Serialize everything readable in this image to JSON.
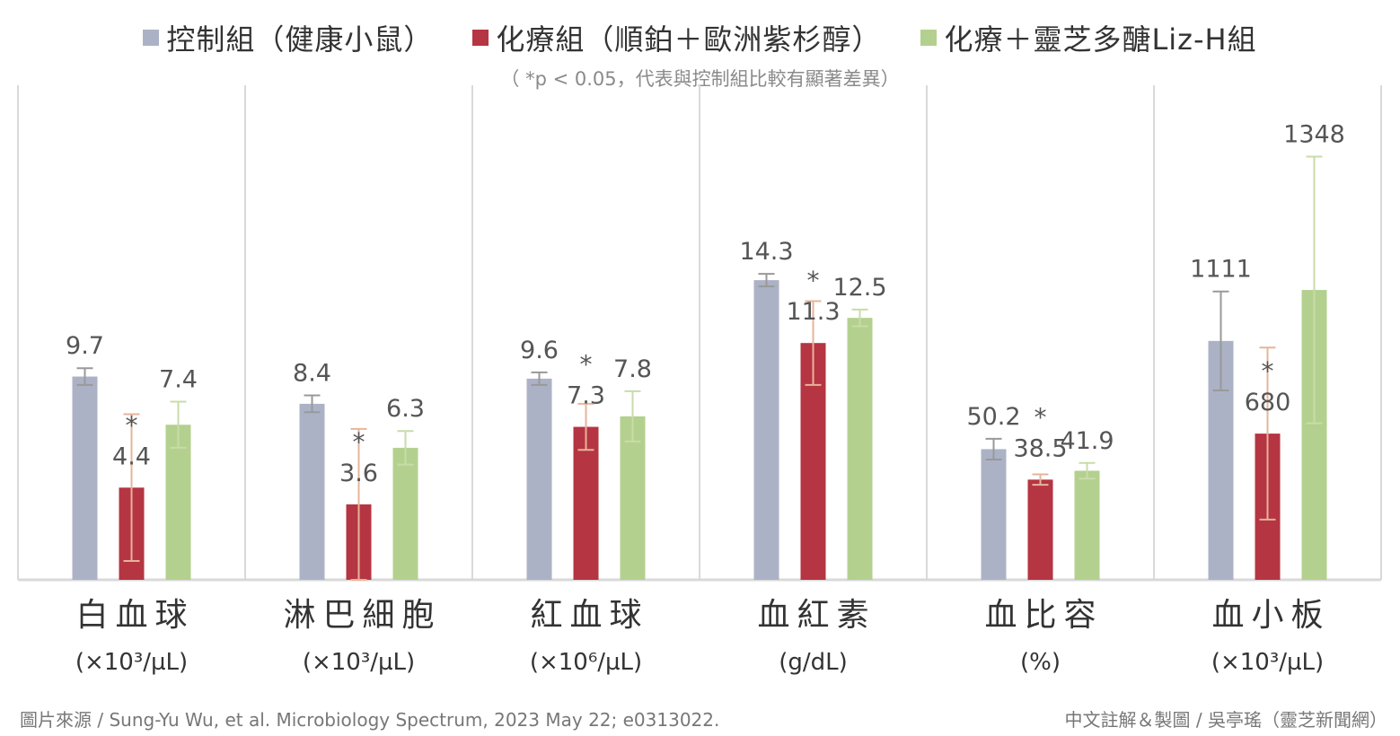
{
  "legend": [
    {
      "label": "控制組（健康小鼠）",
      "color": "#acb2c6"
    },
    {
      "label": "化療組（順鉑＋歐洲紫杉醇）",
      "color": "#b53542"
    },
    {
      "label": "化療＋靈芝多醣Liz-H組",
      "color": "#b4d08e"
    }
  ],
  "subtitle": "（ *p < 0.05，代表與控制組比較有顯著差異）",
  "chart_data": {
    "type": "bar",
    "series_names": [
      "控制組（健康小鼠）",
      "化療組（順鉑＋歐洲紫杉醇）",
      "化療＋靈芝多醣Liz-H組"
    ],
    "series_colors": [
      "#acb2c6",
      "#b53542",
      "#b4d08e"
    ],
    "error_colors": [
      "#999999",
      "#e6b49a",
      "#c8dca8"
    ],
    "groups": [
      {
        "name": "白血球",
        "unit": "(×10³/µL)",
        "values": [
          9.7,
          4.4,
          7.4
        ],
        "labels": [
          "9.7",
          "4.4",
          "7.4"
        ],
        "errors": [
          0.4,
          3.5,
          1.1
        ],
        "significant": [
          false,
          true,
          false
        ],
        "axis_max": 23.6
      },
      {
        "name": "淋巴細胞",
        "unit": "(×10³/µL)",
        "values": [
          8.4,
          3.6,
          6.3
        ],
        "labels": [
          "8.4",
          "3.6",
          "6.3"
        ],
        "errors": [
          0.4,
          3.6,
          0.8
        ],
        "significant": [
          false,
          true,
          false
        ],
        "axis_max": 23.6
      },
      {
        "name": "紅血球",
        "unit": "(×10⁶/µL)",
        "values": [
          9.6,
          7.3,
          7.8
        ],
        "labels": [
          "9.6",
          "7.3",
          "7.8"
        ],
        "errors": [
          0.3,
          1.1,
          1.2
        ],
        "significant": [
          false,
          true,
          false
        ],
        "axis_max": 23.6
      },
      {
        "name": "血紅素",
        "unit": "(g/dL)",
        "values": [
          14.3,
          11.3,
          12.5
        ],
        "labels": [
          "14.3",
          "11.3",
          "12.5"
        ],
        "errors": [
          0.3,
          2.0,
          0.4
        ],
        "significant": [
          false,
          true,
          false
        ],
        "axis_max": 23.6
      },
      {
        "name": "血比容",
        "unit": "(%)",
        "values": [
          50.2,
          38.5,
          41.9
        ],
        "labels": [
          "50.2",
          "38.5",
          "41.9"
        ],
        "errors": [
          4.0,
          2.0,
          3.0
        ],
        "significant": [
          false,
          true,
          false
        ],
        "axis_max": 190
      },
      {
        "name": "血小板",
        "unit": "(×10³/µL)",
        "values": [
          1111,
          680,
          1348
        ],
        "labels": [
          "1111",
          "680",
          "1348"
        ],
        "errors": [
          230,
          400,
          620
        ],
        "significant": [
          false,
          true,
          false
        ],
        "axis_max": 2300
      }
    ]
  },
  "footer": {
    "source": "圖片來源 / Sung-Yu Wu, et al. Microbiology Spectrum, 2023 May 22; e0313022.",
    "credit": "中文註解＆製圖 / 吳亭瑤（靈芝新聞網）"
  }
}
